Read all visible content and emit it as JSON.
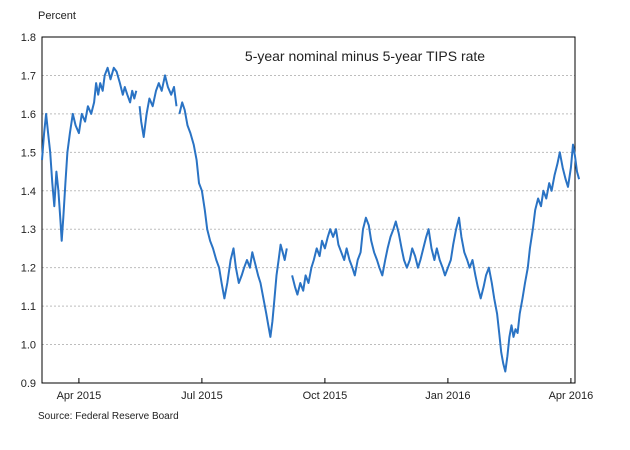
{
  "chart_data": {
    "type": "line",
    "title": "5-year nominal minus 5-year TIPS rate",
    "ylabel": "Percent",
    "xlabel": "",
    "ylim": [
      0.9,
      1.8
    ],
    "y_ticks": [
      "0.9",
      "1.0",
      "1.1",
      "1.2",
      "1.3",
      "1.4",
      "1.5",
      "1.6",
      "1.7",
      "1.8"
    ],
    "x_ticks": [
      "Apr 2015",
      "Jul 2015",
      "Oct 2015",
      "Jan 2016",
      "Apr 2016"
    ],
    "x_tick_index": [
      0,
      3,
      6,
      9,
      12
    ],
    "xlim_index": [
      -0.9,
      12.1
    ],
    "source": "Source: Federal Reserve Board",
    "series": [
      {
        "name": "5-year nominal minus 5-year TIPS rate",
        "color": "#2a73c4",
        "segments": [
          [
            [
              -0.9,
              1.48
            ],
            [
              -0.85,
              1.55
            ],
            [
              -0.8,
              1.6
            ],
            [
              -0.75,
              1.55
            ],
            [
              -0.7,
              1.5
            ],
            [
              -0.65,
              1.42
            ],
            [
              -0.6,
              1.36
            ],
            [
              -0.55,
              1.45
            ],
            [
              -0.5,
              1.4
            ],
            [
              -0.45,
              1.32
            ],
            [
              -0.42,
              1.27
            ],
            [
              -0.38,
              1.33
            ],
            [
              -0.33,
              1.42
            ],
            [
              -0.28,
              1.5
            ],
            [
              -0.22,
              1.55
            ],
            [
              -0.15,
              1.6
            ],
            [
              -0.08,
              1.57
            ],
            [
              0.0,
              1.55
            ],
            [
              0.07,
              1.6
            ],
            [
              0.15,
              1.58
            ],
            [
              0.22,
              1.62
            ],
            [
              0.3,
              1.6
            ],
            [
              0.37,
              1.63
            ],
            [
              0.42,
              1.68
            ],
            [
              0.47,
              1.65
            ],
            [
              0.52,
              1.68
            ],
            [
              0.58,
              1.66
            ],
            [
              0.63,
              1.7
            ],
            [
              0.7,
              1.72
            ],
            [
              0.77,
              1.69
            ],
            [
              0.85,
              1.72
            ],
            [
              0.92,
              1.71
            ],
            [
              1.0,
              1.68
            ],
            [
              1.07,
              1.65
            ],
            [
              1.12,
              1.67
            ],
            [
              1.18,
              1.65
            ],
            [
              1.25,
              1.63
            ],
            [
              1.3,
              1.66
            ],
            [
              1.35,
              1.64
            ],
            [
              1.4,
              1.66
            ]
          ],
          [
            [
              1.48,
              1.62
            ],
            [
              1.52,
              1.58
            ],
            [
              1.58,
              1.54
            ],
            [
              1.65,
              1.6
            ],
            [
              1.72,
              1.64
            ],
            [
              1.8,
              1.62
            ],
            [
              1.88,
              1.66
            ],
            [
              1.95,
              1.68
            ],
            [
              2.02,
              1.66
            ],
            [
              2.1,
              1.7
            ],
            [
              2.17,
              1.67
            ],
            [
              2.25,
              1.65
            ],
            [
              2.32,
              1.67
            ],
            [
              2.38,
              1.62
            ]
          ],
          [
            [
              2.45,
              1.6
            ],
            [
              2.52,
              1.63
            ],
            [
              2.58,
              1.61
            ],
            [
              2.65,
              1.57
            ],
            [
              2.72,
              1.55
            ],
            [
              2.8,
              1.52
            ],
            [
              2.87,
              1.48
            ],
            [
              2.93,
              1.42
            ],
            [
              3.0,
              1.4
            ],
            [
              3.07,
              1.35
            ],
            [
              3.13,
              1.3
            ],
            [
              3.2,
              1.27
            ],
            [
              3.27,
              1.25
            ],
            [
              3.35,
              1.22
            ],
            [
              3.42,
              1.2
            ],
            [
              3.48,
              1.16
            ],
            [
              3.55,
              1.12
            ],
            [
              3.62,
              1.16
            ],
            [
              3.7,
              1.22
            ],
            [
              3.77,
              1.25
            ],
            [
              3.83,
              1.2
            ],
            [
              3.9,
              1.16
            ],
            [
              3.97,
              1.18
            ],
            [
              4.03,
              1.2
            ],
            [
              4.1,
              1.22
            ],
            [
              4.17,
              1.2
            ],
            [
              4.23,
              1.24
            ],
            [
              4.3,
              1.21
            ],
            [
              4.37,
              1.18
            ],
            [
              4.43,
              1.16
            ],
            [
              4.5,
              1.12
            ],
            [
              4.57,
              1.08
            ],
            [
              4.62,
              1.05
            ],
            [
              4.67,
              1.02
            ],
            [
              4.72,
              1.06
            ],
            [
              4.77,
              1.12
            ],
            [
              4.82,
              1.18
            ],
            [
              4.87,
              1.22
            ],
            [
              4.92,
              1.26
            ],
            [
              4.97,
              1.24
            ],
            [
              5.02,
              1.22
            ],
            [
              5.07,
              1.25
            ]
          ],
          [
            [
              5.2,
              1.18
            ],
            [
              5.27,
              1.15
            ],
            [
              5.33,
              1.13
            ],
            [
              5.4,
              1.16
            ],
            [
              5.47,
              1.14
            ],
            [
              5.53,
              1.18
            ],
            [
              5.6,
              1.16
            ],
            [
              5.67,
              1.2
            ],
            [
              5.73,
              1.22
            ],
            [
              5.8,
              1.25
            ],
            [
              5.87,
              1.23
            ],
            [
              5.93,
              1.27
            ],
            [
              6.0,
              1.25
            ],
            [
              6.07,
              1.28
            ],
            [
              6.13,
              1.3
            ],
            [
              6.2,
              1.28
            ],
            [
              6.27,
              1.3
            ],
            [
              6.33,
              1.26
            ],
            [
              6.4,
              1.24
            ],
            [
              6.47,
              1.22
            ],
            [
              6.53,
              1.25
            ],
            [
              6.6,
              1.22
            ],
            [
              6.67,
              1.2
            ],
            [
              6.73,
              1.18
            ],
            [
              6.8,
              1.22
            ],
            [
              6.87,
              1.24
            ],
            [
              6.93,
              1.3
            ],
            [
              7.0,
              1.33
            ],
            [
              7.07,
              1.31
            ],
            [
              7.13,
              1.27
            ],
            [
              7.2,
              1.24
            ],
            [
              7.27,
              1.22
            ],
            [
              7.33,
              1.2
            ],
            [
              7.4,
              1.18
            ],
            [
              7.47,
              1.22
            ],
            [
              7.53,
              1.25
            ],
            [
              7.6,
              1.28
            ],
            [
              7.67,
              1.3
            ],
            [
              7.73,
              1.32
            ],
            [
              7.8,
              1.29
            ],
            [
              7.87,
              1.25
            ],
            [
              7.93,
              1.22
            ],
            [
              8.0,
              1.2
            ],
            [
              8.07,
              1.22
            ],
            [
              8.13,
              1.25
            ],
            [
              8.2,
              1.23
            ],
            [
              8.27,
              1.2
            ],
            [
              8.33,
              1.22
            ],
            [
              8.4,
              1.25
            ],
            [
              8.47,
              1.28
            ],
            [
              8.53,
              1.3
            ],
            [
              8.6,
              1.25
            ],
            [
              8.67,
              1.22
            ],
            [
              8.73,
              1.25
            ],
            [
              8.8,
              1.22
            ],
            [
              8.87,
              1.2
            ],
            [
              8.93,
              1.18
            ],
            [
              9.0,
              1.2
            ],
            [
              9.07,
              1.22
            ],
            [
              9.13,
              1.26
            ],
            [
              9.2,
              1.3
            ],
            [
              9.27,
              1.33
            ],
            [
              9.33,
              1.28
            ],
            [
              9.4,
              1.24
            ],
            [
              9.47,
              1.22
            ],
            [
              9.53,
              1.2
            ],
            [
              9.6,
              1.22
            ],
            [
              9.67,
              1.18
            ],
            [
              9.73,
              1.15
            ],
            [
              9.8,
              1.12
            ],
            [
              9.87,
              1.15
            ],
            [
              9.93,
              1.18
            ],
            [
              10.0,
              1.2
            ],
            [
              10.07,
              1.16
            ],
            [
              10.13,
              1.12
            ],
            [
              10.2,
              1.08
            ],
            [
              10.25,
              1.03
            ],
            [
              10.3,
              0.98
            ],
            [
              10.35,
              0.95
            ],
            [
              10.4,
              0.93
            ],
            [
              10.45,
              0.97
            ],
            [
              10.5,
              1.02
            ],
            [
              10.55,
              1.05
            ],
            [
              10.6,
              1.02
            ],
            [
              10.65,
              1.04
            ],
            [
              10.7,
              1.03
            ],
            [
              10.75,
              1.08
            ],
            [
              10.82,
              1.12
            ],
            [
              10.88,
              1.16
            ],
            [
              10.95,
              1.2
            ],
            [
              11.0,
              1.25
            ],
            [
              11.07,
              1.3
            ],
            [
              11.13,
              1.35
            ],
            [
              11.2,
              1.38
            ],
            [
              11.27,
              1.36
            ],
            [
              11.33,
              1.4
            ],
            [
              11.4,
              1.38
            ],
            [
              11.47,
              1.42
            ],
            [
              11.53,
              1.4
            ],
            [
              11.6,
              1.44
            ],
            [
              11.67,
              1.47
            ],
            [
              11.73,
              1.5
            ],
            [
              11.8,
              1.46
            ],
            [
              11.87,
              1.43
            ],
            [
              11.93,
              1.41
            ],
            [
              12.0,
              1.46
            ],
            [
              12.05,
              1.52
            ],
            [
              12.1,
              1.49
            ],
            [
              12.15,
              1.45
            ],
            [
              12.2,
              1.43
            ]
          ]
        ]
      }
    ]
  }
}
